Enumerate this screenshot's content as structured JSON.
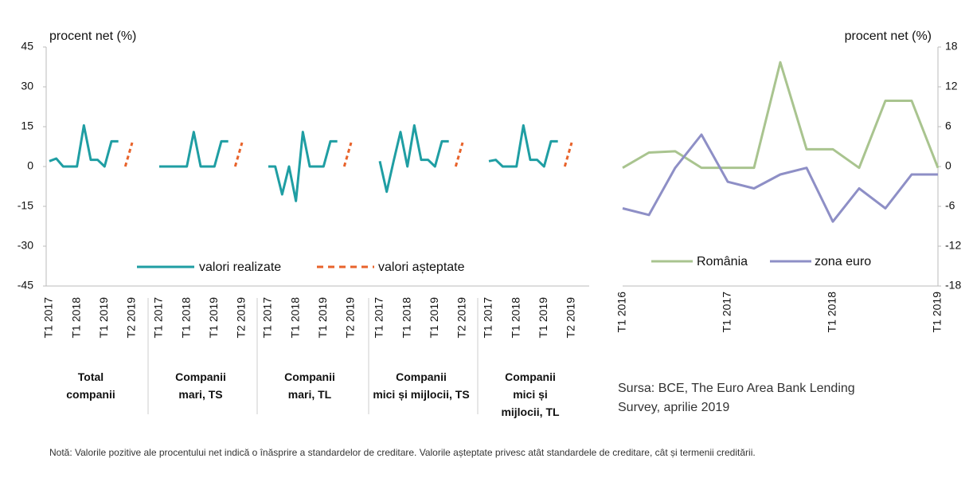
{
  "chart_data": [
    {
      "type": "line",
      "y_label": "procent net (%)",
      "ylim": [
        -45,
        45
      ],
      "yticks": [
        -45,
        -30,
        -15,
        0,
        15,
        30,
        45
      ],
      "categories": [
        "T1 2017",
        null,
        null,
        null,
        "T1 2018",
        null,
        null,
        null,
        "T1 2019",
        null,
        null,
        null,
        "T2 2019"
      ],
      "series": [
        {
          "name": "valori realizate",
          "color": "#1f9ea3"
        },
        {
          "name": "valori așteptate",
          "color": "#e8632b"
        }
      ],
      "panels": [
        {
          "label": "Total\ncompanii",
          "series": [
            {
              "values": [
                2,
                3,
                0,
                0,
                0,
                15.5,
                2.5,
                2.5,
                0,
                9.5,
                9.5,
                null,
                null
              ]
            },
            {
              "values": [
                null,
                null,
                null,
                null,
                null,
                null,
                null,
                null,
                null,
                null,
                null,
                0,
                9
              ]
            }
          ]
        },
        {
          "label": "Companii\nmari, TS",
          "series": [
            {
              "values": [
                0,
                0,
                0,
                0,
                0,
                13,
                0,
                0,
                0,
                9.5,
                9.5,
                null,
                null
              ]
            },
            {
              "values": [
                null,
                null,
                null,
                null,
                null,
                null,
                null,
                null,
                null,
                null,
                null,
                0,
                9
              ]
            }
          ]
        },
        {
          "label": "Companii\nmari, TL",
          "series": [
            {
              "values": [
                0,
                0,
                -10.5,
                0,
                -13,
                13,
                0,
                0,
                0,
                9.5,
                9.5,
                null,
                null
              ]
            },
            {
              "values": [
                null,
                null,
                null,
                null,
                null,
                null,
                null,
                null,
                null,
                null,
                null,
                0,
                9
              ]
            }
          ]
        },
        {
          "label": "Companii\nmici și mijlocii, TS",
          "series": [
            {
              "values": [
                2,
                -9.5,
                2,
                13,
                0,
                15.5,
                2.5,
                2.5,
                0,
                9.5,
                9.5,
                null,
                null
              ]
            },
            {
              "values": [
                null,
                null,
                null,
                null,
                null,
                null,
                null,
                null,
                null,
                null,
                null,
                0,
                9
              ]
            }
          ]
        },
        {
          "label": "Companii\nmici și\nmijlocii, TL",
          "series": [
            {
              "values": [
                2,
                2.5,
                0,
                0,
                0,
                15.5,
                2.5,
                2.5,
                0,
                9.5,
                9.5,
                null,
                null
              ]
            },
            {
              "values": [
                null,
                null,
                null,
                null,
                null,
                null,
                null,
                null,
                null,
                null,
                null,
                0,
                9
              ]
            }
          ]
        }
      ]
    },
    {
      "type": "line",
      "y_label": "procent net (%)",
      "ylim": [
        -18,
        18
      ],
      "yticks": [
        -18,
        -12,
        -6,
        0,
        6,
        12,
        18
      ],
      "categories": [
        "T1 2016",
        null,
        null,
        null,
        "T1 2017",
        null,
        null,
        null,
        "T1 2018",
        null,
        null,
        null,
        "T1 2019"
      ],
      "series": [
        {
          "name": "România",
          "color": "#a9c48f",
          "values": [
            -0.2,
            2.1,
            2.3,
            -0.2,
            -0.2,
            -0.2,
            15.7,
            2.6,
            2.6,
            -0.2,
            9.9,
            9.9,
            -0.2
          ]
        },
        {
          "name": "zona euro",
          "color": "#8e8fc6",
          "values": [
            -6.3,
            -7.3,
            -0.2,
            4.8,
            -2.3,
            -3.3,
            -1.2,
            -0.2,
            -8.3,
            -3.3,
            -6.3,
            -1.2,
            -1.2
          ]
        }
      ]
    }
  ],
  "source": "Sursa: BCE, The Euro Area Bank Lending Survey, aprilie 2019",
  "note": "Notă: Valorile pozitive ale procentului net indică o înăsprire a standardelor de creditare. Valorile așteptate privesc atât standardele de creditare, cât și termenii creditării."
}
